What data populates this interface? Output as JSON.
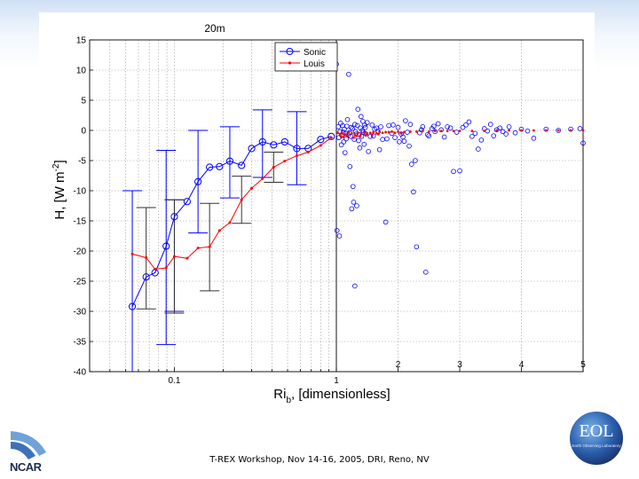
{
  "footer": {
    "text": "T-REX Workshop, Nov 14-16, 2005, DRI, Reno, NV",
    "ncar_label": "NCAR",
    "eol_label": "EOL",
    "eol_subtext": "Earth Observing Laboratory"
  },
  "colors": {
    "sonic": "#0000ff",
    "louis": "#ff0000",
    "errorbar_louis": "#333333",
    "grid": "#999999"
  },
  "chart_data": {
    "type": "scatter",
    "title": "20m",
    "xlabel": "Ri_b, [dimensionless]",
    "xlabel_main": "Ri",
    "xlabel_sub": "b",
    "xlabel_rest": ", [dimensionless]",
    "ylabel": "H, [W m^-2]",
    "ylabel_main": "H",
    "ylabel_rest": ", [W m",
    "ylabel_sup": "-2",
    "ylabel_close": "]",
    "grid": true,
    "legend": {
      "position": "top-right",
      "entries": [
        "Sonic",
        "Louis"
      ]
    },
    "ylim": [
      -40,
      15
    ],
    "yticks": [
      15,
      10,
      5,
      0,
      -5,
      -10,
      -15,
      -20,
      -25,
      -30,
      -35,
      -40
    ],
    "left_panel": {
      "xscale": "log",
      "xlim": [
        0.03,
        1
      ],
      "xticks": [
        0.1,
        1
      ],
      "xtick_labels": [
        "0.1",
        "1"
      ]
    },
    "right_panel": {
      "xscale": "linear",
      "xlim": [
        1,
        5
      ],
      "xticks": [
        2,
        3,
        4,
        5
      ],
      "xtick_labels": [
        "2",
        "3",
        "4",
        "5"
      ]
    },
    "series": [
      {
        "name": "Sonic",
        "marker": "circle",
        "line": true,
        "points": [
          {
            "x": 0.055,
            "y": -29.2
          },
          {
            "x": 0.067,
            "y": -24.3
          },
          {
            "x": 0.076,
            "y": -23.6
          },
          {
            "x": 0.089,
            "y": -19.2
          },
          {
            "x": 0.1,
            "y": -14.3
          },
          {
            "x": 0.12,
            "y": -11.8
          },
          {
            "x": 0.14,
            "y": -8.5
          },
          {
            "x": 0.165,
            "y": -6.1
          },
          {
            "x": 0.19,
            "y": -6.0
          },
          {
            "x": 0.22,
            "y": -5.1
          },
          {
            "x": 0.26,
            "y": -5.8
          },
          {
            "x": 0.3,
            "y": -3.0
          },
          {
            "x": 0.35,
            "y": -1.9
          },
          {
            "x": 0.41,
            "y": -2.4
          },
          {
            "x": 0.48,
            "y": -1.9
          },
          {
            "x": 0.57,
            "y": -3.0
          },
          {
            "x": 0.67,
            "y": -3.0
          },
          {
            "x": 0.8,
            "y": -1.5
          },
          {
            "x": 0.93,
            "y": -1.0
          }
        ],
        "errorbars": [
          {
            "x": 0.055,
            "low": -40,
            "high": -10
          },
          {
            "x": 0.089,
            "low": -35.5,
            "high": -3.3
          },
          {
            "x": 0.1,
            "low": -30,
            "high": -11.5
          },
          {
            "x": 0.14,
            "low": -17,
            "high": 0
          },
          {
            "x": 0.22,
            "low": -11.2,
            "high": 0.6
          },
          {
            "x": 0.35,
            "low": -7.8,
            "high": 3.4
          },
          {
            "x": 0.57,
            "low": -9,
            "high": 3.1
          }
        ]
      },
      {
        "name": "Louis",
        "marker": "dot",
        "line": true,
        "points": [
          {
            "x": 0.055,
            "y": -20.5
          },
          {
            "x": 0.067,
            "y": -21.1
          },
          {
            "x": 0.076,
            "y": -23.0
          },
          {
            "x": 0.089,
            "y": -22.8
          },
          {
            "x": 0.1,
            "y": -20.9
          },
          {
            "x": 0.12,
            "y": -21.2
          },
          {
            "x": 0.14,
            "y": -19.5
          },
          {
            "x": 0.165,
            "y": -19.3
          },
          {
            "x": 0.19,
            "y": -16.6
          },
          {
            "x": 0.22,
            "y": -15.3
          },
          {
            "x": 0.26,
            "y": -11.5
          },
          {
            "x": 0.3,
            "y": -9.6
          },
          {
            "x": 0.35,
            "y": -8.0
          },
          {
            "x": 0.41,
            "y": -6.1
          },
          {
            "x": 0.48,
            "y": -5.1
          },
          {
            "x": 0.57,
            "y": -4.2
          },
          {
            "x": 0.67,
            "y": -3.6
          },
          {
            "x": 0.8,
            "y": -2.5
          },
          {
            "x": 0.93,
            "y": -1.2
          }
        ],
        "errorbars": [
          {
            "x": 0.067,
            "low": -29.6,
            "high": -12.8
          },
          {
            "x": 0.1,
            "low": -30.3,
            "high": -11.5
          },
          {
            "x": 0.165,
            "low": -26.6,
            "high": -12.1
          },
          {
            "x": 0.26,
            "low": -15.4,
            "high": -7.6
          },
          {
            "x": 0.41,
            "low": -8.6,
            "high": -3.6
          }
        ]
      }
    ],
    "scatter_right": {
      "sonic": [
        [
          1.0,
          11.0
        ],
        [
          1.01,
          -16.6
        ],
        [
          1.05,
          -17.5
        ],
        [
          1.2,
          9.3
        ],
        [
          1.3,
          -25.8
        ],
        [
          1.25,
          -13.0
        ],
        [
          1.28,
          -11.9
        ],
        [
          1.27,
          -9.3
        ],
        [
          1.33,
          -12.5
        ],
        [
          1.22,
          -6.0
        ],
        [
          1.35,
          3.5
        ],
        [
          1.4,
          2.3
        ],
        [
          1.5,
          1.3
        ],
        [
          1.6,
          -0.9
        ],
        [
          1.65,
          0.4
        ],
        [
          1.7,
          -3.2
        ],
        [
          1.8,
          -15.2
        ],
        [
          1.9,
          -0.5
        ],
        [
          2.0,
          0.5
        ],
        [
          2.1,
          -1.8
        ],
        [
          2.15,
          -0.3
        ],
        [
          2.2,
          1.0
        ],
        [
          2.22,
          -5.6
        ],
        [
          2.25,
          -10.2
        ],
        [
          2.3,
          -19.3
        ],
        [
          2.4,
          0.6
        ],
        [
          2.45,
          -23.5
        ],
        [
          2.5,
          -0.9
        ],
        [
          2.55,
          0.3
        ],
        [
          2.7,
          0.1
        ],
        [
          2.8,
          0.6
        ],
        [
          2.9,
          -6.8
        ],
        [
          3.0,
          -6.7
        ],
        [
          3.1,
          0.9
        ],
        [
          3.2,
          -1.0
        ],
        [
          3.3,
          -3.1
        ],
        [
          3.4,
          0.3
        ],
        [
          3.5,
          1.0
        ],
        [
          3.6,
          0.1
        ],
        [
          3.7,
          -0.2
        ],
        [
          3.8,
          0.6
        ],
        [
          4.0,
          0.2
        ],
        [
          4.2,
          -1.3
        ],
        [
          4.4,
          0.2
        ],
        [
          4.6,
          0.0
        ],
        [
          4.8,
          0.2
        ],
        [
          4.95,
          0.3
        ],
        [
          5.0,
          -2.1
        ],
        [
          1.1,
          0.8
        ],
        [
          1.15,
          -0.5
        ],
        [
          1.18,
          1.8
        ],
        [
          1.23,
          -1.0
        ],
        [
          1.3,
          1.0
        ],
        [
          1.36,
          -1.7
        ],
        [
          1.42,
          0.0
        ],
        [
          1.45,
          -2.3
        ],
        [
          1.55,
          -1.0
        ],
        [
          1.58,
          0.9
        ],
        [
          1.68,
          -0.2
        ],
        [
          1.75,
          -1.5
        ],
        [
          1.85,
          0.8
        ],
        [
          1.95,
          -1.2
        ],
        [
          2.05,
          -0.6
        ],
        [
          2.12,
          1.6
        ],
        [
          2.18,
          -2.6
        ],
        [
          2.35,
          -0.4
        ],
        [
          2.6,
          -0.2
        ],
        [
          2.65,
          1.1
        ],
        [
          2.75,
          -1.1
        ],
        [
          2.85,
          0.4
        ],
        [
          2.95,
          -0.3
        ],
        [
          3.05,
          0.5
        ],
        [
          3.15,
          1.4
        ],
        [
          3.25,
          -0.5
        ],
        [
          3.35,
          -1.6
        ],
        [
          3.45,
          -0.1
        ],
        [
          3.55,
          -0.9
        ],
        [
          3.65,
          0.4
        ],
        [
          3.75,
          -0.6
        ],
        [
          3.9,
          -0.4
        ],
        [
          4.1,
          -0.1
        ],
        [
          1.06,
          -0.2
        ],
        [
          1.08,
          -2.4
        ],
        [
          1.12,
          -1.9
        ],
        [
          1.14,
          -3.7
        ],
        [
          1.19,
          -0.8
        ],
        [
          1.26,
          0.3
        ],
        [
          1.32,
          -0.6
        ],
        [
          1.38,
          -2.9
        ],
        [
          1.47,
          0.5
        ],
        [
          1.52,
          -3.5
        ],
        [
          1.62,
          0.2
        ],
        [
          1.72,
          0.6
        ],
        [
          1.82,
          -1.4
        ],
        [
          1.92,
          0.9
        ],
        [
          2.02,
          -1.9
        ],
        [
          2.08,
          -1.1
        ],
        [
          2.28,
          -5.0
        ],
        [
          2.38,
          0.1
        ],
        [
          2.48,
          -0.7
        ],
        [
          2.58,
          0.7
        ],
        [
          1.03,
          0.6
        ],
        [
          1.04,
          -1.2
        ],
        [
          1.07,
          1.2
        ],
        [
          1.09,
          -0.9
        ],
        [
          1.11,
          -0.3
        ],
        [
          1.13,
          0.2
        ],
        [
          1.16,
          -1.4
        ],
        [
          1.17,
          0.7
        ],
        [
          1.21,
          -0.4
        ],
        [
          1.24,
          0.5
        ],
        [
          1.29,
          -1.5
        ],
        [
          1.31,
          -0.2
        ],
        [
          1.34,
          0.8
        ],
        [
          1.37,
          -0.7
        ],
        [
          1.39,
          0.4
        ],
        [
          1.41,
          -1.0
        ],
        [
          1.43,
          1.5
        ],
        [
          1.44,
          -0.3
        ],
        [
          1.46,
          0.9
        ],
        [
          1.48,
          -0.6
        ]
      ],
      "louis": [
        [
          1.02,
          -0.4
        ],
        [
          1.06,
          -0.6
        ],
        [
          1.1,
          -0.5
        ],
        [
          1.15,
          -0.7
        ],
        [
          1.2,
          -0.3
        ],
        [
          1.25,
          -0.5
        ],
        [
          1.3,
          -0.8
        ],
        [
          1.35,
          -0.4
        ],
        [
          1.4,
          -0.6
        ],
        [
          1.45,
          -0.3
        ],
        [
          1.5,
          -0.5
        ],
        [
          1.55,
          -0.4
        ],
        [
          1.6,
          -0.3
        ],
        [
          1.65,
          -0.5
        ],
        [
          1.7,
          -0.2
        ],
        [
          1.75,
          -0.4
        ],
        [
          1.8,
          -0.3
        ],
        [
          1.85,
          -0.3
        ],
        [
          1.9,
          -0.2
        ],
        [
          1.95,
          -0.4
        ],
        [
          2.0,
          -0.2
        ],
        [
          2.1,
          -0.3
        ],
        [
          2.2,
          -0.2
        ],
        [
          2.3,
          -0.2
        ],
        [
          2.4,
          -0.1
        ],
        [
          2.5,
          -0.2
        ],
        [
          2.6,
          -0.1
        ],
        [
          2.7,
          -0.1
        ],
        [
          2.8,
          -0.1
        ],
        [
          2.9,
          -0.1
        ],
        [
          3.0,
          -0.1
        ],
        [
          3.2,
          -0.1
        ],
        [
          3.4,
          -0.1
        ],
        [
          3.6,
          0.0
        ],
        [
          3.8,
          0.0
        ],
        [
          4.0,
          0.0
        ],
        [
          4.2,
          0.0
        ],
        [
          4.4,
          0.0
        ],
        [
          4.6,
          0.0
        ],
        [
          4.8,
          0.0
        ],
        [
          5.0,
          0.0
        ],
        [
          1.08,
          -1.0
        ],
        [
          1.12,
          -1.1
        ],
        [
          1.18,
          -0.9
        ],
        [
          1.28,
          -1.2
        ],
        [
          1.33,
          -0.9
        ],
        [
          1.38,
          -1.0
        ],
        [
          1.48,
          -0.8
        ],
        [
          1.58,
          -0.7
        ],
        [
          1.68,
          -0.6
        ],
        [
          2.05,
          -0.5
        ]
      ]
    }
  }
}
